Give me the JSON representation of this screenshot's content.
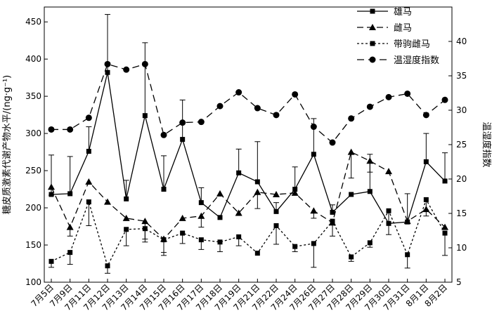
{
  "chart_data": {
    "type": "line",
    "categories": [
      "7月5日",
      "7月9日",
      "7月11日",
      "7月12日",
      "7月13日",
      "7月14日",
      "7月15日",
      "7月16日",
      "7月17日",
      "7月18日",
      "7月19日",
      "7月21日",
      "7月22日",
      "7月24日",
      "7月26日",
      "7月27日",
      "7月28日",
      "7月29日",
      "7月30日",
      "7月31日",
      "8月1日",
      "8月2日"
    ],
    "ylabel_left": "糖皮质激素代谢产物水平/(ng·g⁻¹)",
    "ylabel_right": "温湿度指数",
    "ylim_left": [
      100,
      470
    ],
    "ylim_right": [
      5,
      45
    ],
    "yticks_left": [
      100,
      150,
      200,
      250,
      300,
      350,
      400,
      450
    ],
    "yticks_right": [
      5,
      10,
      15,
      20,
      25,
      30,
      35,
      40
    ],
    "series": [
      {
        "name": "雄马",
        "axis": "left",
        "marker": "square",
        "dash": "solid",
        "values": [
          218,
          219,
          276,
          382,
          212,
          324,
          225,
          292,
          207,
          187,
          247,
          235,
          195,
          225,
          272,
          194,
          218,
          222,
          179,
          181,
          262,
          236
        ],
        "errors": [
          53,
          50,
          33,
          78,
          25,
          98,
          45,
          53,
          20,
          0,
          32,
          54,
          12,
          30,
          48,
          10,
          0,
          50,
          0,
          38,
          38,
          38
        ]
      },
      {
        "name": "雌马",
        "axis": "left",
        "marker": "triangle",
        "dash": "dashed",
        "values": [
          228,
          174,
          235,
          208,
          186,
          182,
          158,
          186,
          189,
          219,
          193,
          221,
          218,
          220,
          196,
          180,
          275,
          263,
          249,
          182,
          198,
          174
        ],
        "errors": [
          11,
          12,
          0,
          0,
          0,
          28,
          22,
          0,
          15,
          0,
          0,
          22,
          0,
          0,
          10,
          0,
          35,
          15,
          0,
          0,
          9,
          0
        ]
      },
      {
        "name": "带驹雌马",
        "axis": "left",
        "marker": "square",
        "dash": "dotted",
        "values": [
          128,
          140,
          208,
          122,
          171,
          172,
          157,
          166,
          157,
          154,
          161,
          139,
          176,
          148,
          152,
          182,
          134,
          153,
          196,
          137,
          211,
          166
        ],
        "errors": [
          8,
          16,
          32,
          10,
          22,
          14,
          17,
          14,
          13,
          13,
          12,
          0,
          25,
          7,
          32,
          20,
          6,
          6,
          32,
          18,
          14,
          30
        ]
      },
      {
        "name": "温湿度指数",
        "axis": "right",
        "marker": "circle",
        "dash": "largedash",
        "values": [
          27.2,
          27.2,
          28.9,
          36.7,
          35.9,
          36.7,
          26.4,
          28.2,
          28.3,
          30.6,
          32.6,
          30.3,
          29.3,
          32.3,
          27.6,
          25.3,
          28.8,
          30.5,
          31.9,
          32.4,
          29.3,
          31.5
        ]
      }
    ]
  }
}
